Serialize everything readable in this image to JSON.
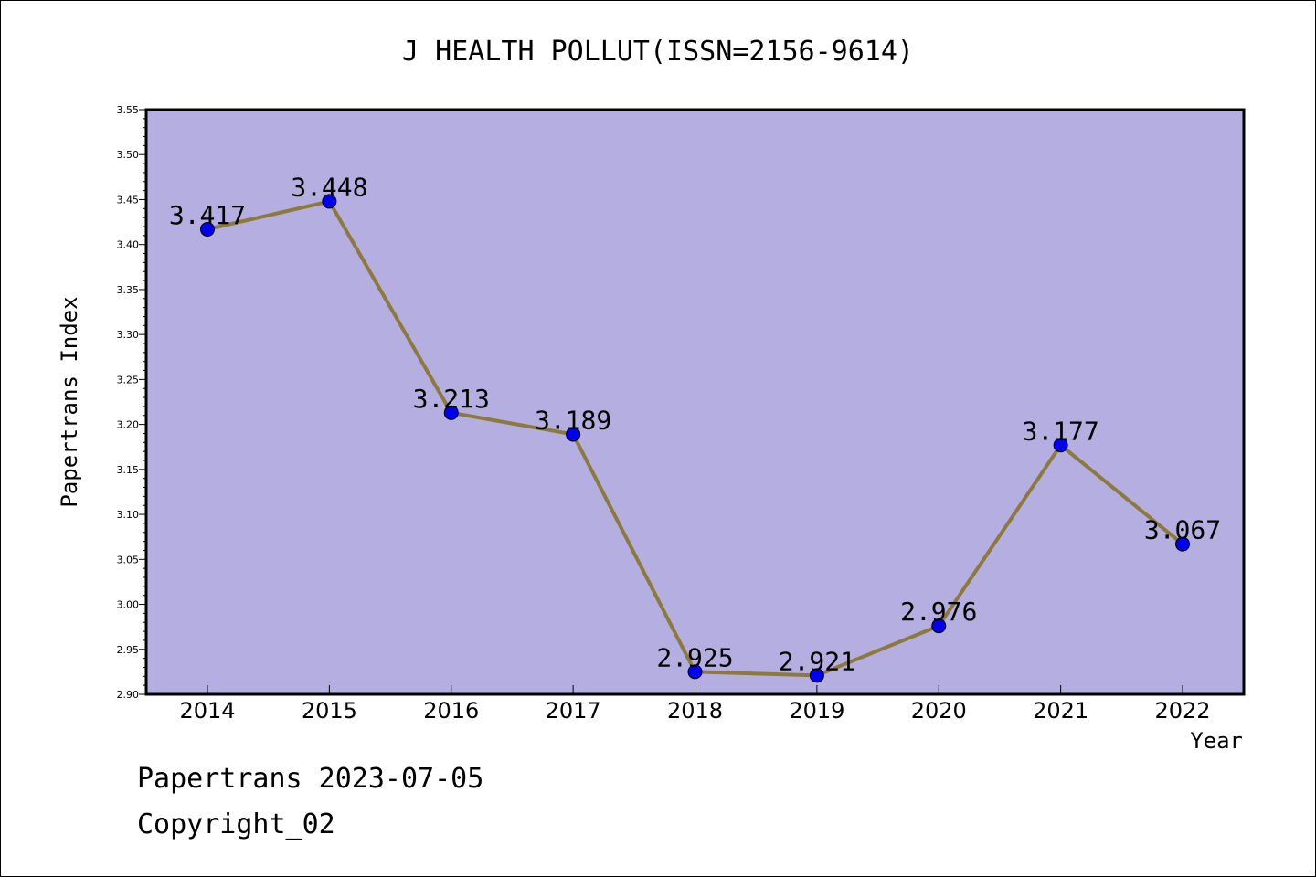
{
  "chart_data": {
    "type": "line",
    "title": "J HEALTH POLLUT(ISSN=2156-9614)",
    "xlabel": "Year",
    "ylabel": "Papertrans Index",
    "categories": [
      "2014",
      "2015",
      "2016",
      "2017",
      "2018",
      "2019",
      "2020",
      "2021",
      "2022"
    ],
    "series": [
      {
        "values": [
          3.417,
          3.448,
          3.213,
          3.189,
          2.925,
          2.921,
          2.976,
          3.177,
          3.067
        ],
        "data_labels": [
          "3.417",
          "3.448",
          "3.213",
          "3.189",
          "2.925",
          "2.921",
          "2.976",
          "3.177",
          "3.067"
        ]
      }
    ],
    "ylim": [
      2.9,
      3.55
    ],
    "yticks": [
      "2.90",
      "2.95",
      "3.00",
      "3.05",
      "3.10",
      "3.15",
      "3.20",
      "3.25",
      "3.30",
      "3.35",
      "3.40",
      "3.45",
      "3.50",
      "3.55"
    ],
    "grid": false,
    "legend": "none",
    "colors": {
      "plot_background": "#b5aee0",
      "line": "#8c7a3c",
      "marker": "#0000ee"
    }
  },
  "footer": {
    "line1": "Papertrans 2023-07-05",
    "line2": "Copyright_02"
  }
}
